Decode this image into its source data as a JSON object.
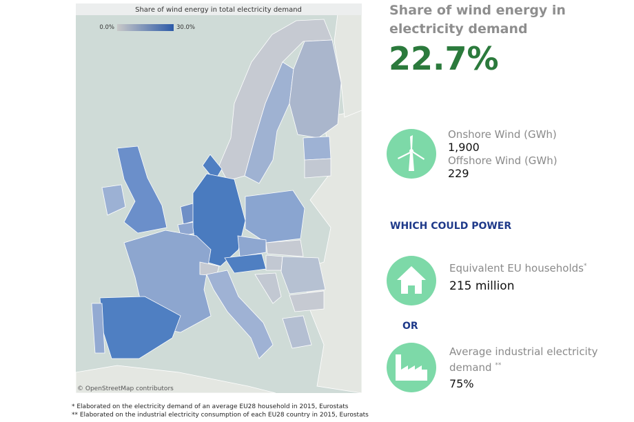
{
  "map": {
    "title": "Share of wind energy in total electricity demand",
    "legend": {
      "min": "0.0%",
      "max": "30.0%"
    },
    "attribution": "© OpenStreetMap contributors"
  },
  "kpi": {
    "title": "Share of wind energy in electricity demand",
    "value": "22.7%"
  },
  "wind": {
    "onshore_label": "Onshore Wind (GWh)",
    "onshore_value": "1,900",
    "offshore_label": "Offshore Wind (GWh)",
    "offshore_value": "229"
  },
  "could_power": "WHICH COULD POWER",
  "households": {
    "label": "Equivalent EU households",
    "marker": "*",
    "value": "215 million"
  },
  "or": "OR",
  "industrial": {
    "label": "Average industrial electricity demand",
    "marker": "**",
    "value": "75%"
  },
  "footnotes": [
    "* Elaborated on the electricity demand of an average EU28 household in 2015, Eurostats",
    "** Elaborated on the industrial electricity consumption of each EU28 country in 2015, Eurostats"
  ]
}
